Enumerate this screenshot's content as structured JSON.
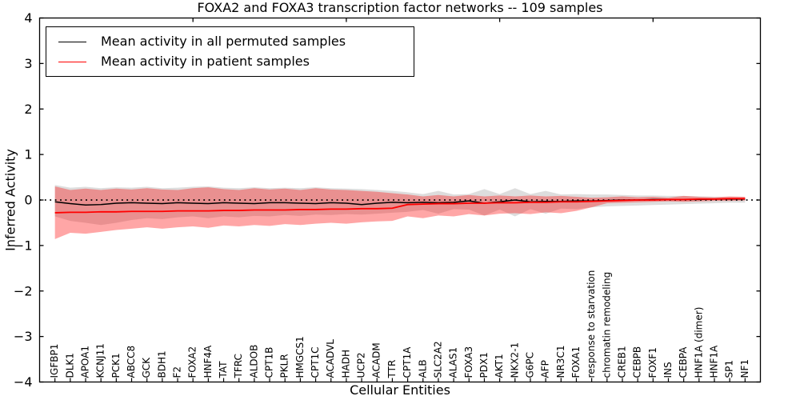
{
  "figure": {
    "title": "FOXA2 and FOXA3 transcription factor networks -- 109 samples",
    "background": "#ffffff"
  },
  "legend": {
    "position": "upper left",
    "entries": [
      {
        "label": "Mean activity in all permuted samples",
        "color": "#000000"
      },
      {
        "label": "Mean activity in patient samples",
        "color": "#ff0000"
      }
    ]
  },
  "chart_data": {
    "type": "line",
    "title": "FOXA2 and FOXA3 transcription factor networks -- 109 samples",
    "xlabel": "Cellular Entities",
    "ylabel": "Inferred Activity",
    "ylim": [
      -4,
      4
    ],
    "yticks": [
      -4,
      -3,
      -2,
      -1,
      0,
      1,
      2,
      3,
      4
    ],
    "x_top_ticks": [
      10,
      20,
      30,
      40
    ],
    "grid": false,
    "legend_position": "upper left",
    "zero_line": {
      "style": "dotted",
      "value": 0,
      "color": "#000000"
    },
    "categories": [
      "IGFBP1",
      "DLK1",
      "APOA1",
      "KCNJ11",
      "PCK1",
      "ABCC8",
      "GCK",
      "BDH1",
      "F2",
      "FOXA2",
      "HNF4A",
      "TAT",
      "TFRC",
      "ALDOB",
      "CPT1B",
      "PKLR",
      "HMGCS1",
      "CPT1C",
      "ACADVL",
      "HADH",
      "UCP2",
      "ACADM",
      "TTR",
      "CPT1A",
      "ALB",
      "SLC2A2",
      "ALAS1",
      "FOXA3",
      "PDX1",
      "AKT1",
      "NKX2-1",
      "G6PC",
      "AFP",
      "NR3C1",
      "FOXA1",
      "response to starvation",
      "chromatin remodeling",
      "CREB1",
      "CEBPB",
      "FOXF1",
      "INS",
      "CEBPA",
      "HNF1A (dimer)",
      "HNF1A",
      "SP1",
      "NF1"
    ],
    "series": [
      {
        "name": "Permuted samples band",
        "type": "band",
        "color": "#808080",
        "opacity": 0.27,
        "upper": [
          0.33,
          0.27,
          0.29,
          0.26,
          0.28,
          0.27,
          0.29,
          0.26,
          0.27,
          0.29,
          0.3,
          0.27,
          0.26,
          0.28,
          0.26,
          0.27,
          0.26,
          0.28,
          0.26,
          0.25,
          0.24,
          0.22,
          0.2,
          0.17,
          0.13,
          0.2,
          0.12,
          0.13,
          0.24,
          0.13,
          0.26,
          0.13,
          0.2,
          0.12,
          0.13,
          0.12,
          0.12,
          0.11,
          0.1,
          0.1,
          0.09,
          0.09,
          0.08,
          0.07,
          0.06,
          0.06
        ],
        "lower": [
          -0.36,
          -0.46,
          -0.5,
          -0.55,
          -0.5,
          -0.44,
          -0.4,
          -0.42,
          -0.38,
          -0.36,
          -0.4,
          -0.36,
          -0.38,
          -0.35,
          -0.36,
          -0.33,
          -0.35,
          -0.32,
          -0.33,
          -0.31,
          -0.32,
          -0.3,
          -0.28,
          -0.26,
          -0.22,
          -0.3,
          -0.2,
          -0.21,
          -0.34,
          -0.21,
          -0.36,
          -0.2,
          -0.3,
          -0.19,
          -0.2,
          -0.16,
          -0.14,
          -0.13,
          -0.12,
          -0.11,
          -0.1,
          -0.09,
          -0.08,
          -0.07,
          -0.06,
          -0.06
        ]
      },
      {
        "name": "Patient samples band",
        "type": "band",
        "color": "#ff0000",
        "opacity": 0.35,
        "upper": [
          0.3,
          0.22,
          0.25,
          0.22,
          0.25,
          0.23,
          0.26,
          0.23,
          0.22,
          0.26,
          0.28,
          0.24,
          0.22,
          0.26,
          0.23,
          0.25,
          0.22,
          0.26,
          0.23,
          0.22,
          0.2,
          0.18,
          0.15,
          0.12,
          0.08,
          0.11,
          0.08,
          0.11,
          0.08,
          0.1,
          0.08,
          0.1,
          0.08,
          0.09,
          0.07,
          0.05,
          0.06,
          0.08,
          0.06,
          0.07,
          0.05,
          0.09,
          0.07,
          0.06,
          0.08,
          0.07
        ],
        "lower": [
          -0.86,
          -0.72,
          -0.74,
          -0.7,
          -0.66,
          -0.63,
          -0.6,
          -0.63,
          -0.6,
          -0.58,
          -0.61,
          -0.56,
          -0.58,
          -0.55,
          -0.57,
          -0.53,
          -0.55,
          -0.52,
          -0.5,
          -0.52,
          -0.49,
          -0.47,
          -0.46,
          -0.36,
          -0.4,
          -0.34,
          -0.36,
          -0.31,
          -0.34,
          -0.3,
          -0.29,
          -0.31,
          -0.27,
          -0.29,
          -0.24,
          -0.16,
          -0.07,
          -0.06,
          -0.05,
          -0.04,
          -0.03,
          -0.04,
          -0.03,
          -0.02,
          -0.02,
          -0.01
        ]
      },
      {
        "name": "Mean activity in all permuted samples",
        "type": "line",
        "color": "#000000",
        "values": [
          -0.04,
          -0.08,
          -0.11,
          -0.1,
          -0.07,
          -0.06,
          -0.07,
          -0.08,
          -0.06,
          -0.07,
          -0.08,
          -0.06,
          -0.07,
          -0.08,
          -0.06,
          -0.06,
          -0.07,
          -0.08,
          -0.06,
          -0.07,
          -0.1,
          -0.07,
          -0.05,
          -0.06,
          -0.05,
          -0.06,
          -0.05,
          -0.02,
          -0.07,
          -0.04,
          0.0,
          -0.04,
          -0.03,
          -0.03,
          -0.02,
          -0.02,
          -0.01,
          0.0,
          0.0,
          0.01,
          0.01,
          0.01,
          0.01,
          0.02,
          0.02,
          0.02
        ]
      },
      {
        "name": "Mean activity in patient samples",
        "type": "line",
        "color": "#ff0000",
        "values": [
          -0.28,
          -0.27,
          -0.27,
          -0.26,
          -0.26,
          -0.25,
          -0.25,
          -0.25,
          -0.24,
          -0.24,
          -0.24,
          -0.23,
          -0.23,
          -0.22,
          -0.22,
          -0.22,
          -0.21,
          -0.21,
          -0.2,
          -0.2,
          -0.19,
          -0.19,
          -0.18,
          -0.1,
          -0.09,
          -0.08,
          -0.08,
          -0.07,
          -0.07,
          -0.06,
          -0.06,
          -0.05,
          -0.05,
          -0.04,
          -0.04,
          -0.03,
          -0.02,
          -0.01,
          0.0,
          0.0,
          0.01,
          0.01,
          0.02,
          0.02,
          0.03,
          0.03
        ]
      }
    ]
  }
}
